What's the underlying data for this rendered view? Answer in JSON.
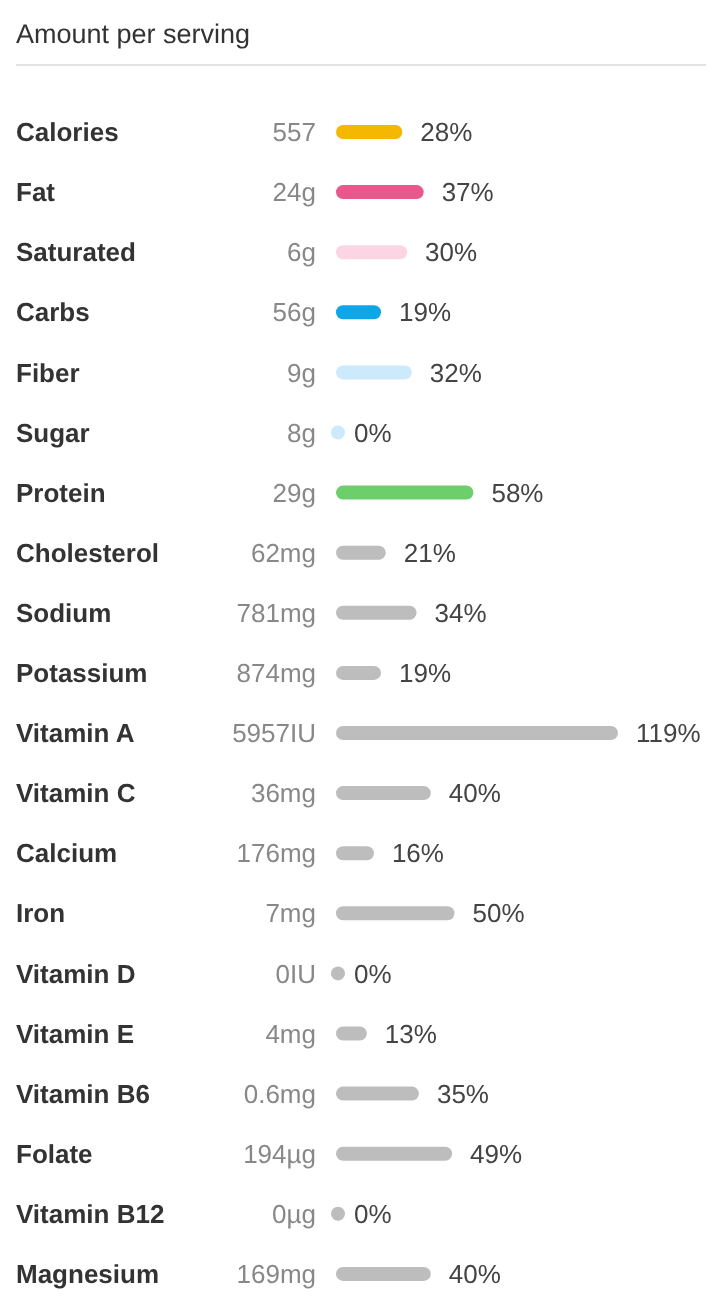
{
  "chart_data": {
    "type": "bar",
    "orientation": "horizontal",
    "title": "Amount per serving",
    "categories": [
      "Calories",
      "Fat",
      "Saturated",
      "Carbs",
      "Fiber",
      "Sugar",
      "Protein",
      "Cholesterol",
      "Sodium",
      "Potassium",
      "Vitamin A",
      "Vitamin C",
      "Calcium",
      "Iron",
      "Vitamin D",
      "Vitamin E",
      "Vitamin B6",
      "Folate",
      "Vitamin B12",
      "Magnesium"
    ],
    "values": [
      28,
      37,
      30,
      19,
      32,
      0,
      58,
      21,
      34,
      19,
      119,
      40,
      16,
      50,
      0,
      13,
      35,
      49,
      0,
      40
    ],
    "value_labels": [
      "28%",
      "37%",
      "30%",
      "19%",
      "32%",
      "0%",
      "58%",
      "21%",
      "34%",
      "19%",
      "119%",
      "40%",
      "16%",
      "50%",
      "0%",
      "13%",
      "35%",
      "49%",
      "0%",
      "40%"
    ],
    "colors": [
      "#f5b800",
      "#e8588a",
      "#fbd5e3",
      "#0ea5e9",
      "#cdeafc",
      "#cdeafc",
      "#6ccf6c",
      "#bdbdbd",
      "#bdbdbd",
      "#bdbdbd",
      "#bdbdbd",
      "#bdbdbd",
      "#bdbdbd",
      "#bdbdbd",
      "#bdbdbd",
      "#bdbdbd",
      "#bdbdbd",
      "#bdbdbd",
      "#bdbdbd",
      "#bdbdbd"
    ],
    "annotations": [
      "557",
      "24g",
      "6g",
      "56g",
      "9g",
      "8g",
      "29g",
      "62mg",
      "781mg",
      "874mg",
      "5957IU",
      "36mg",
      "176mg",
      "7mg",
      "0IU",
      "4mg",
      "0.6mg",
      "194µg",
      "0µg",
      "169mg"
    ],
    "data_labels": true
  }
}
